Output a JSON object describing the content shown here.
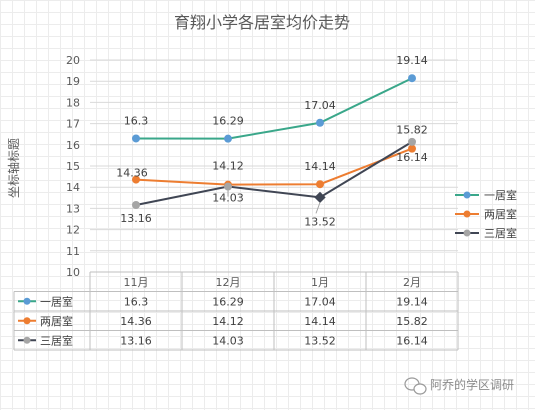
{
  "chart_data": {
    "type": "line",
    "title": "育翔小学各居室均价走势",
    "ylabel": "坐标轴标题",
    "xlabel": "",
    "categories": [
      "11月",
      "12月",
      "1月",
      "2月"
    ],
    "ylim": [
      10,
      20
    ],
    "yticks": [
      10,
      11,
      12,
      13,
      14,
      15,
      16,
      17,
      18,
      19,
      20
    ],
    "grid": true,
    "legend": "right",
    "data_table": true,
    "series": [
      {
        "name": "一居室",
        "values": [
          16.3,
          16.29,
          17.04,
          19.14
        ],
        "labels": [
          "16.3",
          "16.29",
          "17.04",
          "19.14"
        ],
        "color": "#3aa78a",
        "marker": "#5b9bd5"
      },
      {
        "name": "两居室",
        "values": [
          14.36,
          14.12,
          14.14,
          15.82
        ],
        "labels": [
          "14.36",
          "14.12",
          "14.14",
          "15.82"
        ],
        "color": "#ed7d31",
        "marker": "#ed7d31"
      },
      {
        "name": "三居室",
        "values": [
          13.16,
          14.03,
          13.52,
          16.14
        ],
        "labels": [
          "13.16",
          "14.03",
          "13.52",
          "16.14"
        ],
        "color": "#404654",
        "marker": "#a5a5a5"
      }
    ]
  },
  "watermark": "阿乔的学区调研"
}
